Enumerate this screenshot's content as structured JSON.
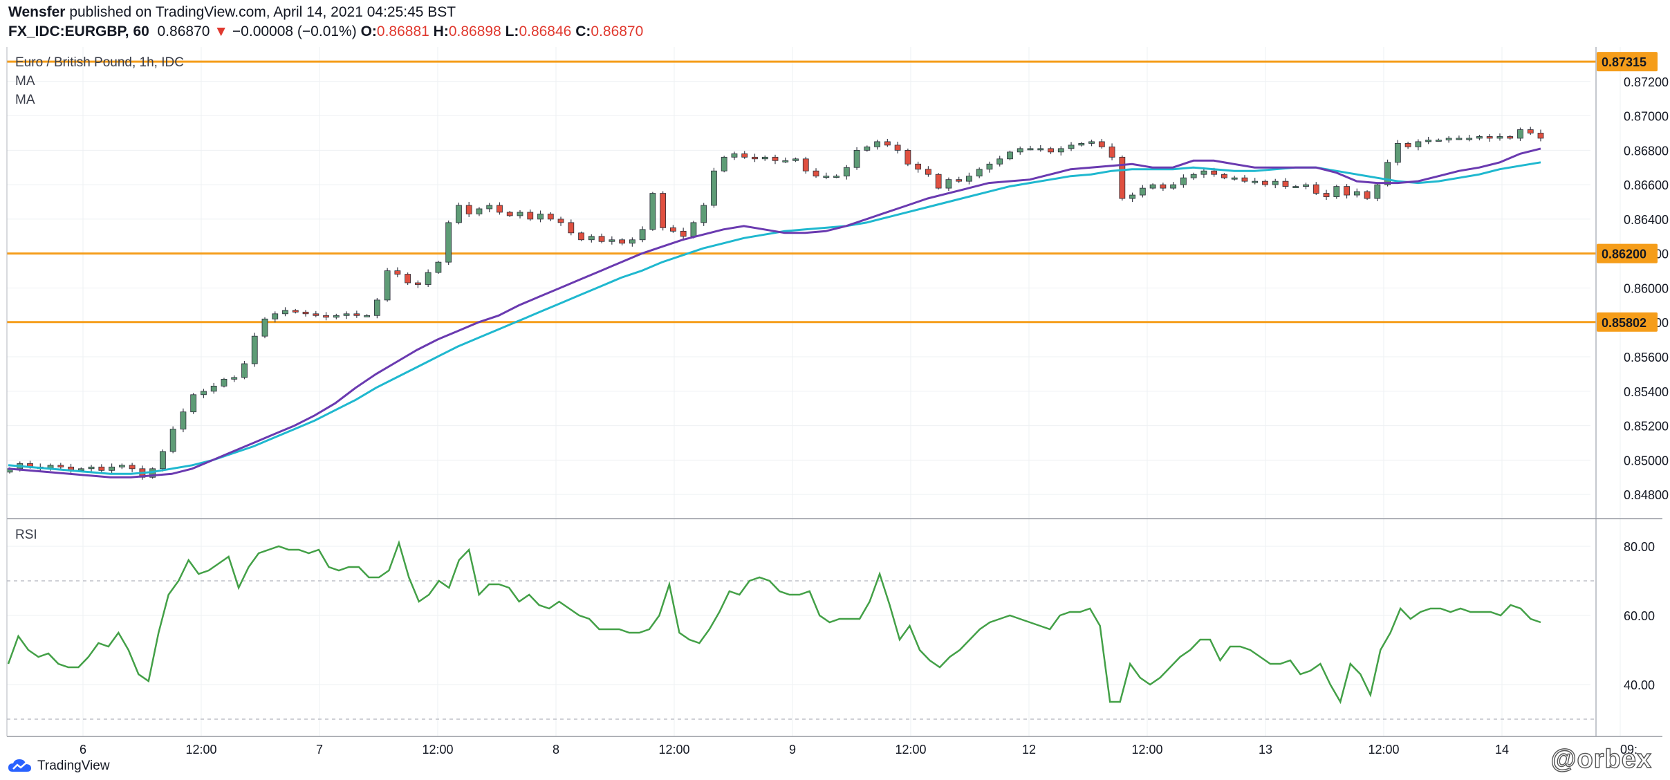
{
  "header": {
    "author": "Wensfer",
    "published": " published on TradingView.com, April 14, 2021 04:25:45 BST",
    "symbol": "FX_IDC:EURGBP, 60",
    "last": "0.86870",
    "arrow": "▼",
    "change": "−0.00008 (−0.01%)",
    "o_label": "O:",
    "o_val": "0.86881",
    "h_label": "H:",
    "h_val": "0.86898",
    "l_label": "L:",
    "l_val": "0.86846",
    "c_label": "C:",
    "c_val": "0.86870"
  },
  "legend": {
    "title": "Euro / British Pound, 1h, IDC",
    "ma1": "MA",
    "ma2": "MA",
    "rsi": "RSI"
  },
  "footer": {
    "brand": "TradingView",
    "watermark": "@orbex"
  },
  "colors": {
    "up": "#5e9c76",
    "down": "#e05040",
    "ma_fast": "#6a3ab0",
    "ma_slow": "#1fb8cf",
    "rsi": "#43a047",
    "levels": "#f59d1a"
  },
  "chart_data": [
    {
      "type": "candlestick",
      "title": "Euro / British Pound, 1h, IDC",
      "ylim": [
        0.8466,
        0.874
      ],
      "y_ticks": [
        "0.84800",
        "0.85000",
        "0.85200",
        "0.85400",
        "0.85600",
        "0.85800",
        "0.86000",
        "0.86200",
        "0.86400",
        "0.86600",
        "0.86800",
        "0.87000",
        "0.87200"
      ],
      "x_ticks": [
        "6",
        "12:00",
        "7",
        "12:00",
        "8",
        "12:00",
        "9",
        "12:00",
        "12",
        "12:00",
        "13",
        "12:00",
        "14",
        "09:"
      ],
      "horizontal_levels": [
        "0.87315",
        "0.86200",
        "0.85802"
      ],
      "close": [
        0.8495,
        0.8498,
        0.8496,
        0.8495,
        0.8497,
        0.8496,
        0.8494,
        0.8495,
        0.8496,
        0.8494,
        0.8496,
        0.8497,
        0.8495,
        0.849,
        0.8495,
        0.8505,
        0.8518,
        0.8528,
        0.8538,
        0.854,
        0.8543,
        0.8547,
        0.8548,
        0.8556,
        0.8572,
        0.8582,
        0.8585,
        0.8587,
        0.8586,
        0.8585,
        0.8584,
        0.8583,
        0.8584,
        0.8585,
        0.8584,
        0.8584,
        0.8593,
        0.861,
        0.8608,
        0.8603,
        0.8602,
        0.8609,
        0.8615,
        0.8638,
        0.8648,
        0.8643,
        0.8646,
        0.8648,
        0.8644,
        0.8642,
        0.8644,
        0.864,
        0.8643,
        0.864,
        0.8638,
        0.8632,
        0.8628,
        0.863,
        0.8627,
        0.8628,
        0.8626,
        0.8628,
        0.8634,
        0.8655,
        0.8635,
        0.8633,
        0.863,
        0.8638,
        0.8648,
        0.8668,
        0.8676,
        0.8678,
        0.8676,
        0.8675,
        0.8676,
        0.8674,
        0.8674,
        0.8675,
        0.8668,
        0.8665,
        0.8665,
        0.8665,
        0.867,
        0.868,
        0.8682,
        0.8685,
        0.8683,
        0.868,
        0.8672,
        0.8669,
        0.8666,
        0.8658,
        0.8663,
        0.8662,
        0.8665,
        0.8669,
        0.8672,
        0.8675,
        0.8679,
        0.8681,
        0.8681,
        0.8681,
        0.8679,
        0.8681,
        0.8683,
        0.8684,
        0.8685,
        0.8682,
        0.8676,
        0.8652,
        0.8654,
        0.8658,
        0.866,
        0.8658,
        0.866,
        0.8664,
        0.8666,
        0.8668,
        0.8666,
        0.8664,
        0.8664,
        0.8662,
        0.8662,
        0.866,
        0.8662,
        0.8659,
        0.8659,
        0.866,
        0.8655,
        0.8653,
        0.8659,
        0.8654,
        0.8656,
        0.8652,
        0.866,
        0.8673,
        0.8684,
        0.8682,
        0.8685,
        0.8686,
        0.8686,
        0.8687,
        0.8687,
        0.8687,
        0.8688,
        0.8687,
        0.8688,
        0.8687,
        0.8692,
        0.869,
        0.8687
      ]
    },
    {
      "type": "line",
      "series": [
        {
          "values": [
            0.8495,
            0.8494,
            0.8493,
            0.8492,
            0.8491,
            0.849,
            0.849,
            0.8491,
            0.8492,
            0.8495,
            0.85,
            0.8505,
            0.851,
            0.8515,
            0.852,
            0.8526,
            0.8533,
            0.8542,
            0.855,
            0.8557,
            0.8564,
            0.857,
            0.8575,
            0.858,
            0.8584,
            0.859,
            0.8595,
            0.86,
            0.8605,
            0.861,
            0.8615,
            0.862,
            0.8624,
            0.8628,
            0.8631,
            0.8634,
            0.8636,
            0.8634,
            0.8632,
            0.8632,
            0.8633,
            0.8636,
            0.864,
            0.8644,
            0.8648,
            0.8652,
            0.8655,
            0.8658,
            0.8661,
            0.8662,
            0.8663,
            0.8666,
            0.8669,
            0.867,
            0.8671,
            0.8672,
            0.867,
            0.867,
            0.8674,
            0.8674,
            0.8672,
            0.867,
            0.867,
            0.867,
            0.867,
            0.8667,
            0.8662,
            0.8661,
            0.8661,
            0.8662,
            0.8665,
            0.8668,
            0.867,
            0.8673,
            0.8678,
            0.8681
          ]
        }
      ]
    },
    {
      "type": "line",
      "series": [
        {
          "values": [
            0.8497,
            0.8496,
            0.8495,
            0.8494,
            0.8493,
            0.8492,
            0.8492,
            0.8493,
            0.8495,
            0.8497,
            0.85,
            0.8504,
            0.8508,
            0.8513,
            0.8518,
            0.8523,
            0.8529,
            0.8535,
            0.8542,
            0.8548,
            0.8554,
            0.856,
            0.8566,
            0.8571,
            0.8576,
            0.8581,
            0.8586,
            0.8591,
            0.8596,
            0.8601,
            0.8606,
            0.861,
            0.8615,
            0.8619,
            0.8623,
            0.8626,
            0.8629,
            0.8631,
            0.8633,
            0.8634,
            0.8635,
            0.8636,
            0.8638,
            0.8641,
            0.8644,
            0.8647,
            0.865,
            0.8653,
            0.8656,
            0.8659,
            0.8661,
            0.8663,
            0.8665,
            0.8666,
            0.8668,
            0.8669,
            0.8669,
            0.8669,
            0.867,
            0.8669,
            0.8668,
            0.8668,
            0.8669,
            0.867,
            0.867,
            0.8668,
            0.8666,
            0.8664,
            0.8662,
            0.8661,
            0.8662,
            0.8664,
            0.8666,
            0.8669,
            0.8671,
            0.8673
          ]
        }
      ]
    },
    {
      "type": "line",
      "title": "RSI",
      "ylim": [
        25,
        88
      ],
      "y_ticks": [
        "80.00",
        "60.00",
        "40.00"
      ],
      "bands": [
        70,
        30
      ],
      "values": [
        46,
        54,
        50,
        48,
        49,
        46,
        45,
        45,
        48,
        52,
        51,
        55,
        50,
        43,
        41,
        55,
        66,
        70,
        76,
        72,
        73,
        75,
        77,
        68,
        74,
        78,
        79,
        80,
        79,
        79,
        78,
        79,
        74,
        73,
        74,
        74,
        71,
        71,
        73,
        81,
        71,
        64,
        66,
        70,
        68,
        76,
        79,
        66,
        69,
        69,
        68,
        64,
        66,
        63,
        62,
        64,
        62,
        60,
        59,
        56,
        56,
        56,
        55,
        55,
        56,
        60,
        69,
        55,
        53,
        52,
        56,
        61,
        67,
        66,
        70,
        71,
        70,
        67,
        66,
        66,
        67,
        60,
        58,
        59,
        59,
        59,
        64,
        72,
        63,
        53,
        57,
        50,
        47,
        45,
        48,
        50,
        53,
        56,
        58,
        59,
        60,
        59,
        58,
        57,
        56,
        60,
        61,
        61,
        62,
        57,
        35,
        35,
        46,
        42,
        40,
        42,
        45,
        48,
        50,
        53,
        53,
        47,
        51,
        51,
        50,
        48,
        46,
        46,
        47,
        43,
        44,
        46,
        40,
        35,
        46,
        43,
        37,
        50,
        55,
        62,
        59,
        61,
        62,
        62,
        61,
        62,
        61,
        61,
        61,
        60,
        63,
        62,
        59,
        58
      ]
    }
  ]
}
